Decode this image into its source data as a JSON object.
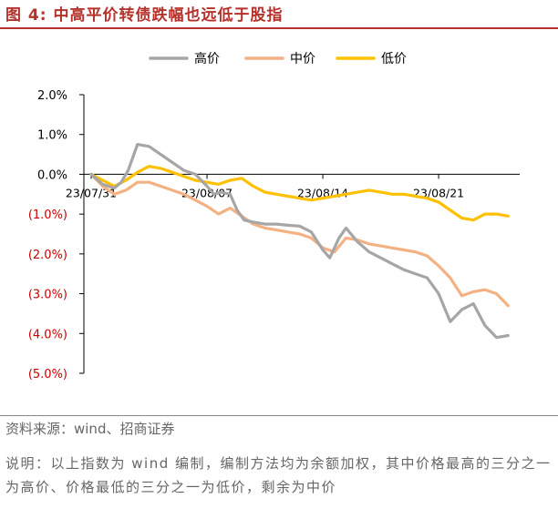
{
  "figure": {
    "title": "图 4:  中高平价转债跌幅也远低于股指",
    "source": "资料来源：wind、招商证券",
    "note": "说明：以上指数为 wind 编制，编制方法均为余额加权，其中价格最高的三分之一为高价、价格最低的三分之一为低价，剩余为中价"
  },
  "chart_data": {
    "type": "line",
    "legend_position": "top-center",
    "grid": false,
    "ylim": [
      -5.0,
      2.0
    ],
    "y_ticks": [
      {
        "value": 2.0,
        "label": "2.0%",
        "color": "#000000"
      },
      {
        "value": 1.0,
        "label": "1.0%",
        "color": "#000000"
      },
      {
        "value": 0.0,
        "label": "0.0%",
        "color": "#000000"
      },
      {
        "value": -1.0,
        "label": "(1.0%)",
        "color": "#cc0000"
      },
      {
        "value": -2.0,
        "label": "(2.0%)",
        "color": "#cc0000"
      },
      {
        "value": -3.0,
        "label": "(3.0%)",
        "color": "#cc0000"
      },
      {
        "value": -4.0,
        "label": "(4.0%)",
        "color": "#cc0000"
      },
      {
        "value": -5.0,
        "label": "(5.0%)",
        "color": "#cc0000"
      }
    ],
    "x_ticks": [
      {
        "x": 0,
        "label": "23/07/31"
      },
      {
        "x": 5,
        "label": "23/08/07"
      },
      {
        "x": 10,
        "label": "23/08/14"
      },
      {
        "x": 15,
        "label": "23/08/21"
      }
    ],
    "xlim": [
      0,
      18.5
    ],
    "series": [
      {
        "name": "高价",
        "color": "#a6a6a6",
        "x": [
          0,
          0.5,
          1,
          1.3,
          1.6,
          2,
          2.5,
          3,
          3.5,
          4,
          4.5,
          5,
          5.3,
          5.6,
          6,
          6.3,
          6.6,
          7,
          7.5,
          8,
          8.5,
          9,
          9.5,
          10,
          10.3,
          10.7,
          11,
          11.5,
          12,
          12.5,
          13,
          13.5,
          14,
          14.5,
          15,
          15.5,
          16,
          16.5,
          17,
          17.5,
          18
        ],
        "y": [
          0,
          -0.25,
          -0.35,
          -0.2,
          0.1,
          0.75,
          0.7,
          0.5,
          0.3,
          0.1,
          0.0,
          -0.3,
          -0.5,
          -0.45,
          -0.5,
          -0.9,
          -1.15,
          -1.2,
          -1.25,
          -1.25,
          -1.28,
          -1.3,
          -1.45,
          -1.9,
          -2.1,
          -1.6,
          -1.35,
          -1.7,
          -1.95,
          -2.1,
          -2.25,
          -2.4,
          -2.5,
          -2.6,
          -3.0,
          -3.7,
          -3.4,
          -3.25,
          -3.8,
          -4.1,
          -4.05
        ]
      },
      {
        "name": "中价",
        "color": "#f4b183",
        "x": [
          0,
          0.5,
          1,
          1.5,
          2,
          2.5,
          3,
          3.5,
          4,
          4.5,
          5,
          5.5,
          6,
          6.5,
          7,
          7.5,
          8,
          8.5,
          9,
          9.5,
          10,
          10.5,
          11,
          11.5,
          12,
          12.5,
          13,
          13.5,
          14,
          14.5,
          15,
          15.5,
          16,
          16.5,
          17,
          17.5,
          18
        ],
        "y": [
          0,
          -0.3,
          -0.5,
          -0.4,
          -0.2,
          -0.2,
          -0.3,
          -0.4,
          -0.5,
          -0.65,
          -0.8,
          -1.0,
          -0.85,
          -1.05,
          -1.25,
          -1.35,
          -1.4,
          -1.45,
          -1.5,
          -1.6,
          -1.85,
          -1.95,
          -1.6,
          -1.65,
          -1.75,
          -1.8,
          -1.85,
          -1.9,
          -1.95,
          -2.05,
          -2.3,
          -2.6,
          -3.05,
          -2.95,
          -2.9,
          -3.0,
          -3.3
        ]
      },
      {
        "name": "低价",
        "color": "#ffc000",
        "x": [
          0,
          0.5,
          1,
          1.5,
          2,
          2.5,
          3,
          3.5,
          4,
          4.5,
          5,
          5.5,
          6,
          6.5,
          7,
          7.5,
          8,
          8.5,
          9,
          9.5,
          10,
          10.5,
          11,
          11.5,
          12,
          12.5,
          13,
          13.5,
          14,
          14.5,
          15,
          15.5,
          16,
          16.5,
          17,
          17.5,
          18
        ],
        "y": [
          0,
          -0.15,
          -0.3,
          -0.15,
          0.05,
          0.2,
          0.15,
          0.05,
          -0.05,
          -0.15,
          -0.2,
          -0.25,
          -0.15,
          -0.1,
          -0.3,
          -0.45,
          -0.5,
          -0.55,
          -0.6,
          -0.65,
          -0.6,
          -0.55,
          -0.5,
          -0.45,
          -0.4,
          -0.45,
          -0.5,
          -0.5,
          -0.55,
          -0.6,
          -0.7,
          -0.9,
          -1.1,
          -1.15,
          -1.0,
          -1.0,
          -1.05
        ]
      }
    ]
  }
}
